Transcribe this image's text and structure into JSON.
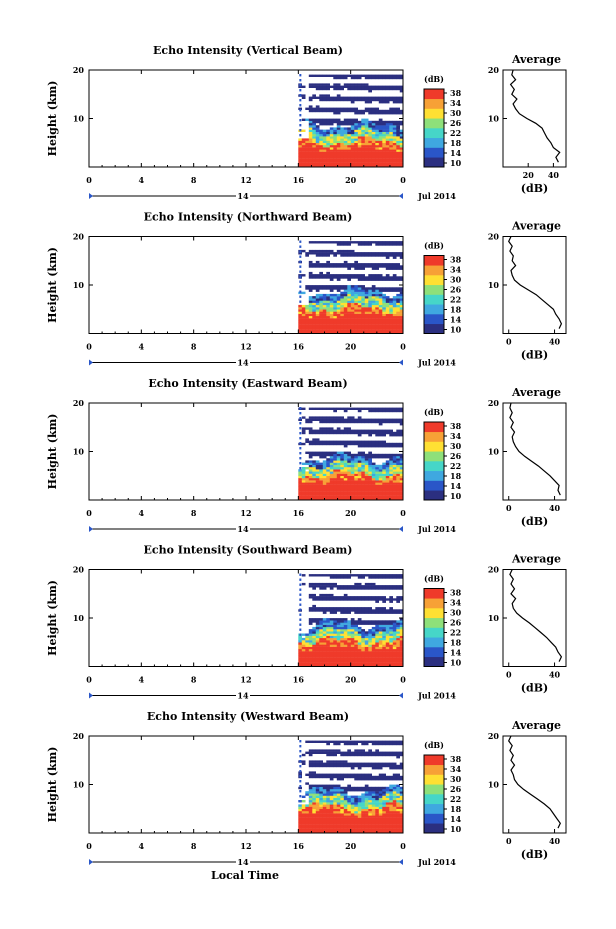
{
  "figure": {
    "xlabel": "Local Time",
    "date_label": "Jul 2014",
    "colorbar_label": "(dB)",
    "avg_title": "Average",
    "avg_xlabel": "(dB)"
  },
  "colors": {
    "colormap": [
      "#2b2f80",
      "#2a56c8",
      "#3fa8e0",
      "#46d6c8",
      "#8ee07a",
      "#ffe033",
      "#f7a136",
      "#ef3a2a"
    ]
  },
  "chart_data": [
    {
      "type": "heatmap",
      "title": "Echo Intensity (Vertical Beam)",
      "ylabel": "Height (km)",
      "x_ticks": [
        "0",
        "4",
        "8",
        "12",
        "16",
        "20",
        "0"
      ],
      "day_label": "14",
      "y_ticks": [
        "20",
        "10"
      ],
      "xlim": [
        0,
        24
      ],
      "ylim": [
        0,
        20
      ],
      "data_start_hour": 16,
      "colorbar_ticks": [
        "38",
        "34",
        "30",
        "26",
        "22",
        "18",
        "14",
        "10"
      ],
      "clim": [
        10,
        38
      ],
      "average": {
        "x_ticks": [
          "20",
          "40"
        ],
        "xlim": [
          0,
          50
        ],
        "height_km": [
          1,
          2,
          3,
          4,
          5,
          6,
          7,
          8,
          9,
          10,
          11,
          12,
          13,
          14,
          15,
          16,
          17,
          18,
          19,
          20
        ],
        "db": [
          44,
          42,
          45,
          40,
          38,
          35,
          33,
          31,
          26,
          19,
          13,
          10,
          8,
          11,
          7,
          9,
          6,
          10,
          7,
          8
        ]
      }
    },
    {
      "type": "heatmap",
      "title": "Echo Intensity (Northward Beam)",
      "ylabel": "Height (km)",
      "x_ticks": [
        "0",
        "4",
        "8",
        "12",
        "16",
        "20",
        "0"
      ],
      "day_label": "14",
      "y_ticks": [
        "20",
        "10"
      ],
      "xlim": [
        0,
        24
      ],
      "ylim": [
        0,
        20
      ],
      "data_start_hour": 16,
      "colorbar_ticks": [
        "38",
        "34",
        "30",
        "26",
        "22",
        "18",
        "14",
        "10"
      ],
      "clim": [
        10,
        38
      ],
      "average": {
        "x_ticks": [
          "0",
          "40"
        ],
        "xlim": [
          -5,
          50
        ],
        "height_km": [
          1,
          2,
          3,
          4,
          5,
          6,
          7,
          8,
          9,
          10,
          11,
          12,
          13,
          14,
          15,
          16,
          17,
          18,
          19,
          20
        ],
        "db": [
          44,
          46,
          44,
          41,
          39,
          34,
          29,
          24,
          17,
          10,
          5,
          3,
          2,
          6,
          3,
          4,
          1,
          3,
          0,
          2
        ]
      }
    },
    {
      "type": "heatmap",
      "title": "Echo Intensity (Eastward Beam)",
      "ylabel": "Height (km)",
      "x_ticks": [
        "0",
        "4",
        "8",
        "12",
        "16",
        "20",
        "0"
      ],
      "day_label": "14",
      "y_ticks": [
        "20",
        "10"
      ],
      "xlim": [
        0,
        24
      ],
      "ylim": [
        0,
        20
      ],
      "data_start_hour": 16,
      "colorbar_ticks": [
        "38",
        "34",
        "30",
        "26",
        "22",
        "18",
        "14",
        "10"
      ],
      "clim": [
        10,
        38
      ],
      "average": {
        "x_ticks": [
          "0",
          "40"
        ],
        "xlim": [
          -5,
          50
        ],
        "height_km": [
          1,
          2,
          3,
          4,
          5,
          6,
          7,
          8,
          9,
          10,
          11,
          12,
          13,
          14,
          15,
          16,
          17,
          18,
          19,
          20
        ],
        "db": [
          45,
          43,
          44,
          40,
          36,
          31,
          26,
          20,
          14,
          9,
          6,
          4,
          3,
          5,
          2,
          4,
          1,
          3,
          1,
          2
        ]
      }
    },
    {
      "type": "heatmap",
      "title": "Echo Intensity (Southward Beam)",
      "ylabel": "Height (km)",
      "x_ticks": [
        "0",
        "4",
        "8",
        "12",
        "16",
        "20",
        "0"
      ],
      "day_label": "14",
      "y_ticks": [
        "20",
        "10"
      ],
      "xlim": [
        0,
        24
      ],
      "ylim": [
        0,
        20
      ],
      "data_start_hour": 16,
      "colorbar_ticks": [
        "38",
        "34",
        "30",
        "26",
        "22",
        "18",
        "14",
        "10"
      ],
      "clim": [
        10,
        38
      ],
      "average": {
        "x_ticks": [
          "0",
          "40"
        ],
        "xlim": [
          -5,
          50
        ],
        "height_km": [
          1,
          2,
          3,
          4,
          5,
          6,
          7,
          8,
          9,
          10,
          11,
          12,
          13,
          14,
          15,
          16,
          17,
          18,
          19,
          20
        ],
        "db": [
          44,
          46,
          43,
          41,
          37,
          33,
          28,
          23,
          18,
          12,
          7,
          4,
          3,
          6,
          2,
          5,
          2,
          4,
          1,
          3
        ]
      }
    },
    {
      "type": "heatmap",
      "title": "Echo Intensity (Westward Beam)",
      "ylabel": "Height (km)",
      "x_ticks": [
        "0",
        "4",
        "8",
        "12",
        "16",
        "20",
        "0"
      ],
      "day_label": "14",
      "y_ticks": [
        "20",
        "10"
      ],
      "xlim": [
        0,
        24
      ],
      "ylim": [
        0,
        20
      ],
      "data_start_hour": 16,
      "colorbar_ticks": [
        "38",
        "34",
        "30",
        "26",
        "22",
        "18",
        "14",
        "10"
      ],
      "clim": [
        10,
        38
      ],
      "average": {
        "x_ticks": [
          "0",
          "40"
        ],
        "xlim": [
          -5,
          50
        ],
        "height_km": [
          1,
          2,
          3,
          4,
          5,
          6,
          7,
          8,
          9,
          10,
          11,
          12,
          13,
          14,
          15,
          16,
          17,
          18,
          19,
          20
        ],
        "db": [
          43,
          45,
          42,
          39,
          36,
          31,
          25,
          19,
          13,
          8,
          5,
          4,
          2,
          5,
          2,
          4,
          1,
          3,
          0,
          2
        ]
      }
    }
  ]
}
